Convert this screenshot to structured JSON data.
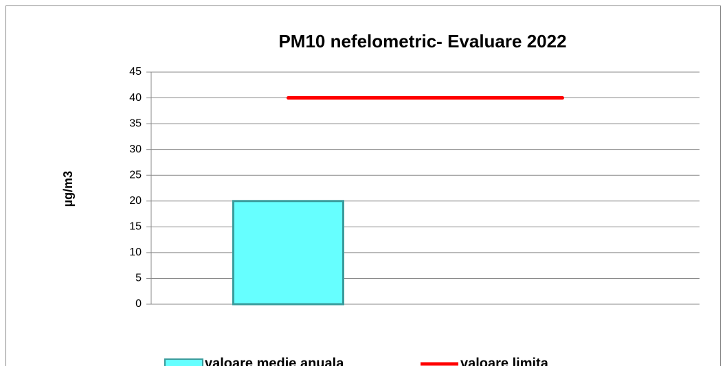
{
  "chart_data": {
    "type": "bar",
    "title": "PM10 nefelometric- Evaluare 2022",
    "ylabel": "µg/m3",
    "categories": [
      null,
      null
    ],
    "series": [
      {
        "name": "valoare medie anuala",
        "type": "bar",
        "color": "#66ffff",
        "values": [
          20,
          null
        ]
      },
      {
        "name": "valoare limita",
        "type": "line",
        "color": "#ff0000",
        "values": [
          40,
          40
        ]
      }
    ],
    "ylim": [
      0,
      45
    ],
    "yticks": [
      0,
      5,
      10,
      15,
      20,
      25,
      30,
      35,
      40,
      45
    ],
    "grid": true,
    "legend": "bottom"
  }
}
